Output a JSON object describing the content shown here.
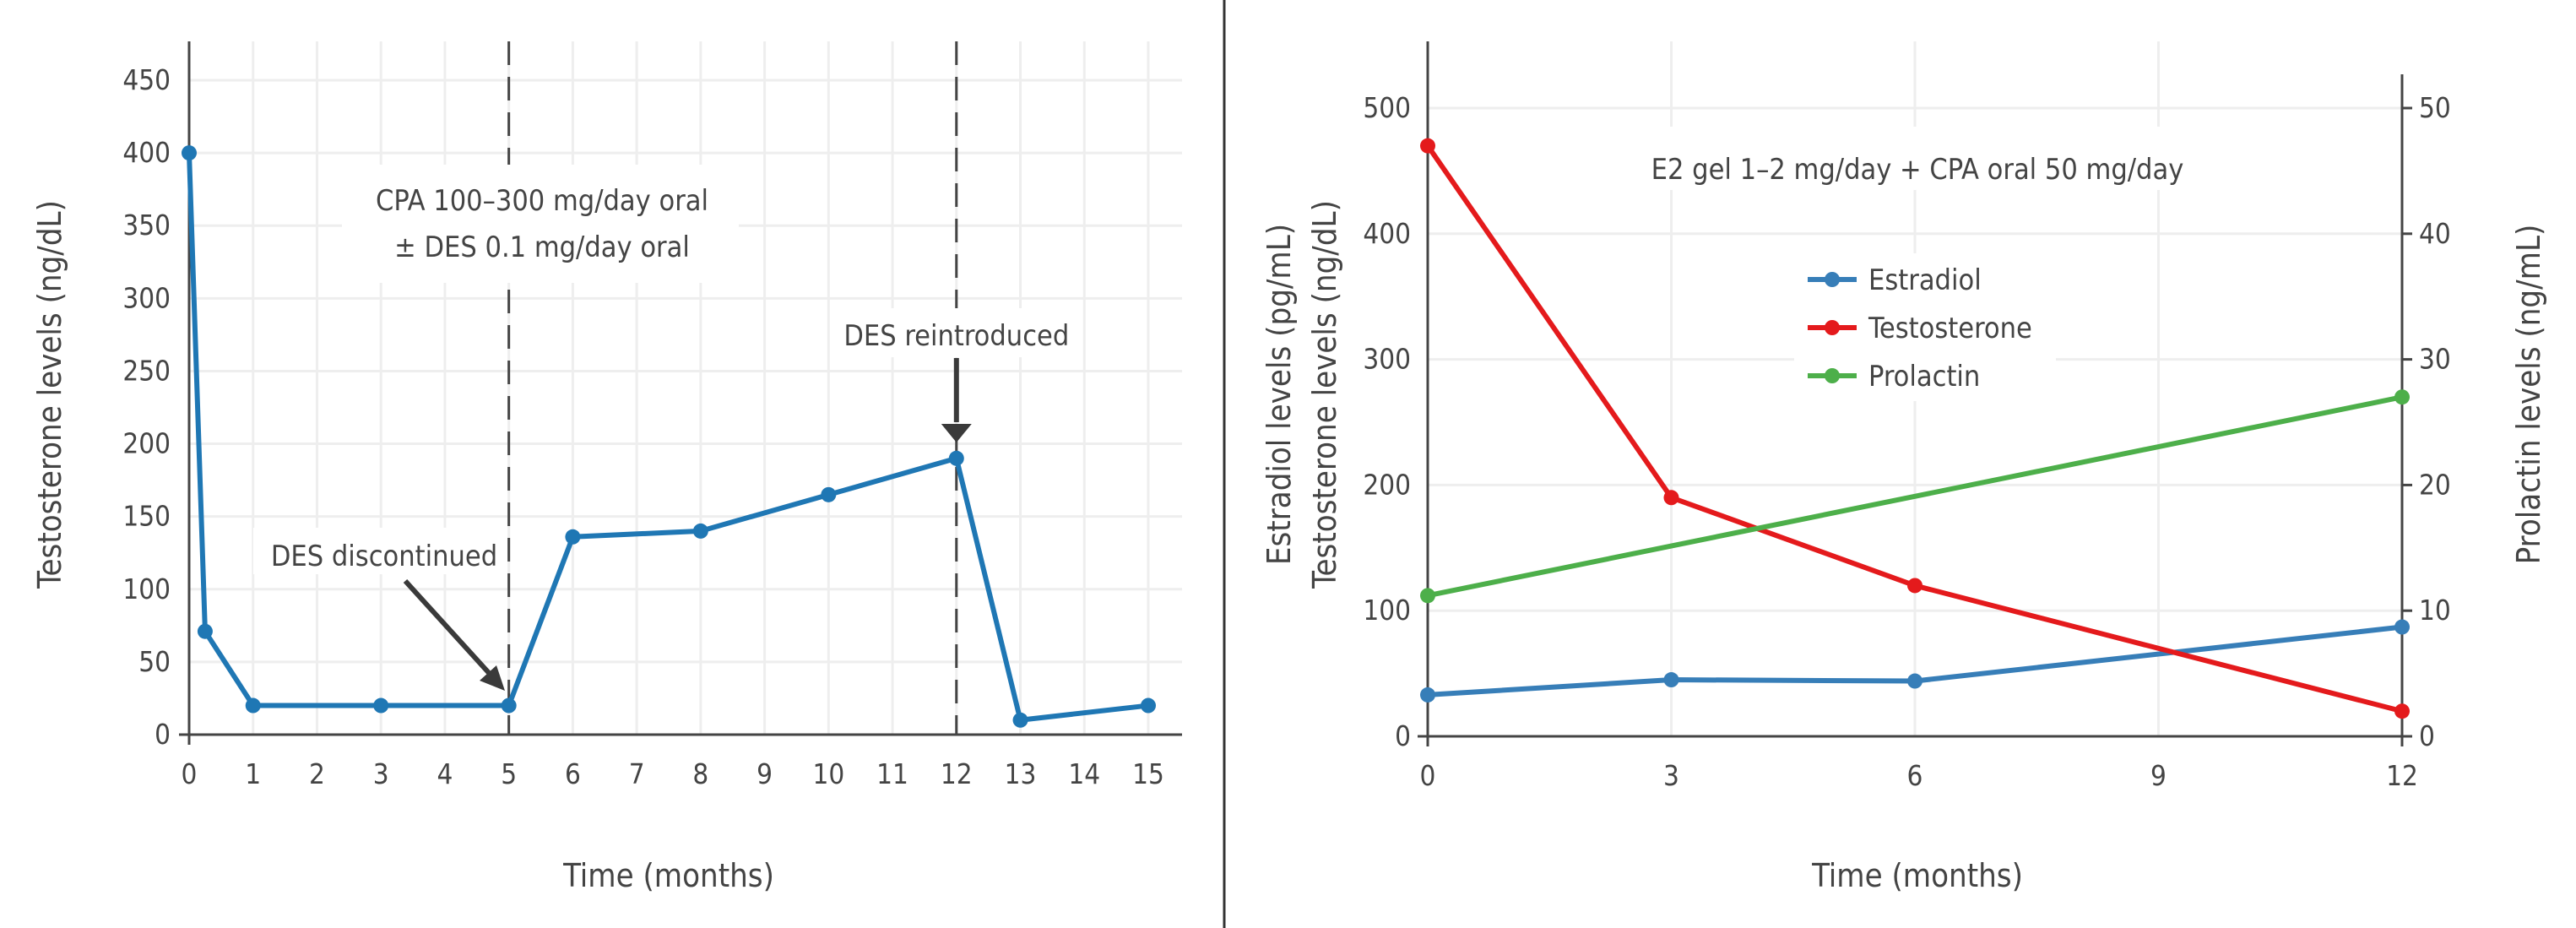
{
  "chart_data": [
    {
      "type": "line",
      "xlabel": "Time (months)",
      "ylabel": "Testosterone levels (ng/dL)",
      "xlim": [
        0,
        15
      ],
      "ylim": [
        0,
        450
      ],
      "x_ticks": [
        0,
        1,
        2,
        3,
        4,
        5,
        6,
        7,
        8,
        9,
        10,
        11,
        12,
        13,
        14,
        15
      ],
      "y_ticks": [
        0,
        50,
        100,
        150,
        200,
        250,
        300,
        350,
        400,
        450
      ],
      "grid": true,
      "series": [
        {
          "color": "#1f77b4",
          "x": [
            0,
            0.25,
            1,
            3,
            5,
            6,
            8,
            10,
            12,
            13,
            15
          ],
          "y": [
            400,
            71,
            20,
            20,
            20,
            136,
            140,
            165,
            190,
            10,
            20
          ]
        }
      ],
      "vlines": [
        5,
        12
      ],
      "annotations": {
        "regimen_line1": "CPA 100–300 mg/day oral",
        "regimen_line2": "± DES 0.1 mg/day oral",
        "discontinued": "DES discontinued",
        "reintroduced": "DES reintroduced"
      }
    },
    {
      "type": "line",
      "xlabel": "Time (months)",
      "ylabel_line1": "Estradiol levels (pg/mL)",
      "ylabel_line2": "Testosterone levels (ng/dL)",
      "y2label": "Prolactin levels (ng/mL)",
      "xlim": [
        0,
        12
      ],
      "ylim": [
        0,
        550
      ],
      "y2lim": [
        0,
        52
      ],
      "x_ticks": [
        0,
        3,
        6,
        9,
        12
      ],
      "y_ticks": [
        0,
        100,
        200,
        300,
        400,
        500
      ],
      "y2_ticks": [
        0,
        10,
        20,
        30,
        40,
        50
      ],
      "grid": true,
      "legend_position": "center",
      "annotation": "E2 gel 1–2 mg/day + CPA oral 50 mg/day",
      "series": [
        {
          "name": "Estradiol",
          "color": "#377eb8",
          "axis": "left",
          "x": [
            0,
            3,
            6,
            12
          ],
          "y": [
            33,
            45,
            44,
            87
          ]
        },
        {
          "name": "Testosterone",
          "color": "#e41a1c",
          "axis": "left",
          "x": [
            0,
            3,
            6,
            12
          ],
          "y": [
            470,
            190,
            120,
            20
          ]
        },
        {
          "name": "Prolactin",
          "color": "#4daf4a",
          "axis": "right",
          "x": [
            0,
            12
          ],
          "y": [
            11.2,
            27
          ]
        }
      ]
    }
  ]
}
